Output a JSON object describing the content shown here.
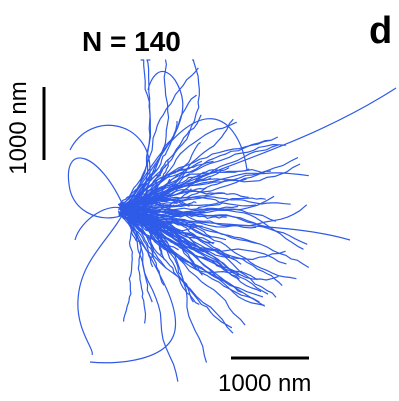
{
  "panel": {
    "count_label": "N = 140",
    "letter": "d"
  },
  "scale_bars": {
    "vertical_label": "1000 nm",
    "horizontal_label": "1000 nm"
  },
  "colors": {
    "trajectory": "#2f5be8",
    "scale_bar": "#000000",
    "text": "#000000"
  },
  "trajectory_count": 140
}
